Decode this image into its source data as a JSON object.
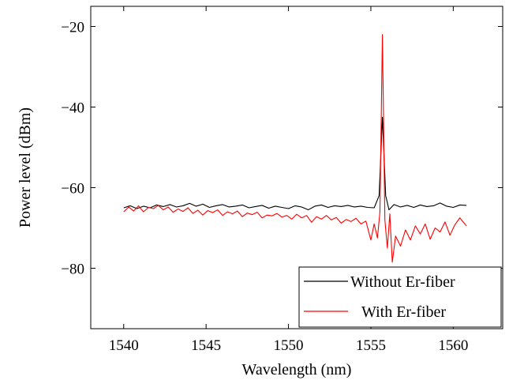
{
  "chart_data": {
    "type": "line",
    "xlabel": "Wavelength (nm)",
    "ylabel": "Power level (dBm)",
    "xlim": [
      1538,
      1563
    ],
    "ylim": [
      -95,
      -15
    ],
    "xticks": [
      1540,
      1545,
      1550,
      1555,
      1560
    ],
    "yticks": [
      -80,
      -60,
      -40,
      -20
    ],
    "xtick_labels": [
      "1540",
      "1545",
      "1550",
      "1555",
      "1560"
    ],
    "ytick_labels": [
      "−80",
      "−60",
      "−40",
      "−20"
    ],
    "grid": false,
    "legend_position": "bottom-right",
    "series": [
      {
        "name": "Without Er-fiber",
        "color": "#000000",
        "x": [
          1540.0,
          1540.4,
          1540.8,
          1541.2,
          1541.6,
          1542.0,
          1542.4,
          1542.8,
          1543.2,
          1543.6,
          1544.0,
          1544.4,
          1544.8,
          1545.2,
          1545.6,
          1546.0,
          1546.4,
          1546.8,
          1547.2,
          1547.6,
          1548.0,
          1548.4,
          1548.8,
          1549.2,
          1549.6,
          1550.0,
          1550.4,
          1550.8,
          1551.2,
          1551.6,
          1552.0,
          1552.4,
          1552.8,
          1553.2,
          1553.6,
          1554.0,
          1554.4,
          1554.8,
          1555.2,
          1555.5,
          1555.7,
          1555.9,
          1556.1,
          1556.4,
          1556.8,
          1557.2,
          1557.6,
          1558.0,
          1558.4,
          1558.8,
          1559.2,
          1559.6,
          1560.0,
          1560.4,
          1560.8
        ],
        "y": [
          -65,
          -64.5,
          -65.2,
          -64.6,
          -65.0,
          -64.3,
          -64.7,
          -64.2,
          -64.8,
          -64.5,
          -63.9,
          -64.6,
          -64.1,
          -64.9,
          -64.5,
          -64.2,
          -64.8,
          -64.6,
          -64.3,
          -65.0,
          -64.7,
          -64.4,
          -65.1,
          -64.6,
          -64.9,
          -65.2,
          -64.5,
          -64.8,
          -65.5,
          -64.6,
          -64.3,
          -64.9,
          -64.5,
          -64.7,
          -64.4,
          -64.8,
          -64.6,
          -64.9,
          -65.0,
          -62.0,
          -42.5,
          -62.0,
          -65.5,
          -64.2,
          -64.8,
          -64.4,
          -64.9,
          -64.3,
          -64.7,
          -64.5,
          -63.8,
          -64.6,
          -64.9,
          -64.3,
          -64.4
        ]
      },
      {
        "name": "With Er-fiber",
        "color": "#ff0000",
        "x": [
          1540.0,
          1540.3,
          1540.6,
          1540.9,
          1541.2,
          1541.5,
          1541.8,
          1542.1,
          1542.4,
          1542.7,
          1543.0,
          1543.3,
          1543.6,
          1543.9,
          1544.2,
          1544.5,
          1544.8,
          1545.1,
          1545.4,
          1545.7,
          1546.0,
          1546.3,
          1546.6,
          1546.9,
          1547.2,
          1547.5,
          1547.8,
          1548.1,
          1548.4,
          1548.7,
          1549.0,
          1549.3,
          1549.6,
          1549.9,
          1550.2,
          1550.5,
          1550.8,
          1551.1,
          1551.4,
          1551.7,
          1552.0,
          1552.3,
          1552.6,
          1552.9,
          1553.2,
          1553.5,
          1553.8,
          1554.1,
          1554.4,
          1554.7,
          1555.0,
          1555.2,
          1555.4,
          1555.55,
          1555.7,
          1555.85,
          1556.0,
          1556.15,
          1556.3,
          1556.5,
          1556.8,
          1557.1,
          1557.4,
          1557.7,
          1558.0,
          1558.3,
          1558.6,
          1558.9,
          1559.2,
          1559.5,
          1559.8,
          1560.1,
          1560.4,
          1560.8
        ],
        "y": [
          -66,
          -64.8,
          -65.8,
          -64.5,
          -66.0,
          -64.9,
          -65.2,
          -64.4,
          -65.5,
          -64.8,
          -66.1,
          -65.3,
          -65.9,
          -65.0,
          -66.4,
          -65.6,
          -66.8,
          -65.7,
          -66.2,
          -65.5,
          -66.9,
          -66.0,
          -66.5,
          -65.8,
          -67.2,
          -66.3,
          -66.7,
          -66.1,
          -67.5,
          -66.8,
          -67.0,
          -66.4,
          -67.3,
          -66.9,
          -67.8,
          -66.6,
          -67.5,
          -66.9,
          -68.6,
          -67.2,
          -67.8,
          -66.9,
          -68.0,
          -67.4,
          -68.8,
          -67.9,
          -68.4,
          -67.6,
          -69.0,
          -68.3,
          -73.0,
          -69.0,
          -72.5,
          -66.0,
          -22.0,
          -68.0,
          -75.0,
          -66.5,
          -78.5,
          -72.0,
          -74.5,
          -70.5,
          -73.0,
          -69.5,
          -71.5,
          -69.0,
          -72.8,
          -70.0,
          -71.0,
          -68.5,
          -71.8,
          -69.2,
          -67.5,
          -69.5
        ]
      }
    ]
  }
}
